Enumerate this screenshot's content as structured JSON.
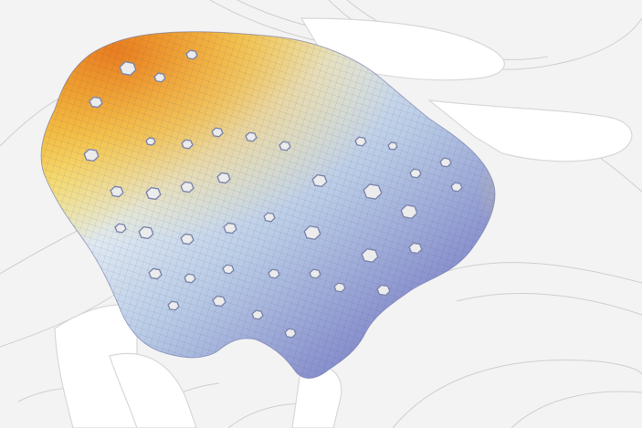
{
  "scene": {
    "subject": "perforated-shell-mesh-render",
    "colors": {
      "background": "#f3f3f3",
      "ground_line": "#cfcfcf",
      "slab_face": "#ffffff",
      "slab_edge": "#d8d8d8",
      "hole": "#ececec",
      "hole_rim": "#7d86ad",
      "mesh_line": "#3a3f55",
      "gradient": [
        "#e97a1f",
        "#f3b93a",
        "#f6e27a",
        "#dfe9f2",
        "#b9cbe6",
        "#8c95cf",
        "#6b6fbd"
      ]
    }
  }
}
